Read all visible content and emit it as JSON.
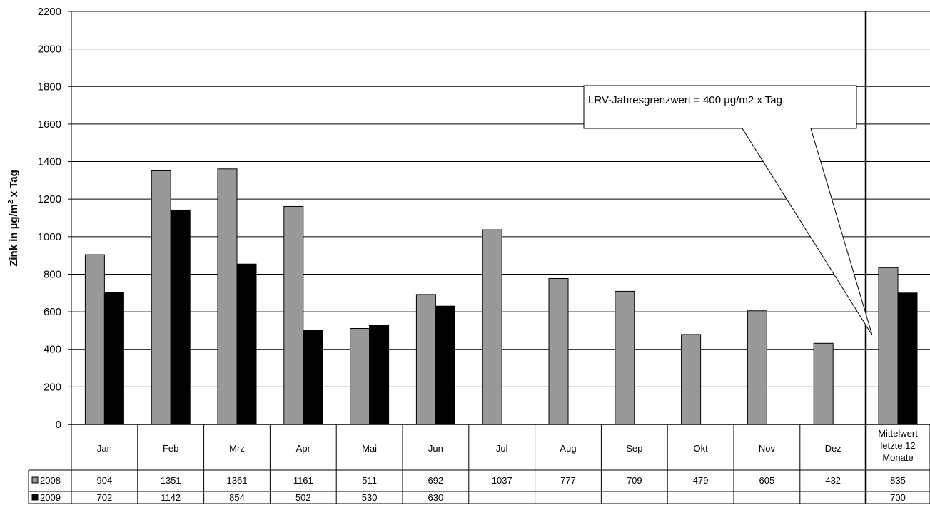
{
  "chart_data": {
    "type": "bar",
    "title": "",
    "xlabel": "",
    "ylabel": "Zink in µg/m² x Tag",
    "ylabel_parts": {
      "main": "Zink in µg/m",
      "sup": "2",
      "tail": " x Tag"
    },
    "ylim": [
      0,
      2200
    ],
    "yticks": [
      0,
      200,
      400,
      600,
      800,
      1000,
      1200,
      1400,
      1600,
      1800,
      2000,
      2200
    ],
    "grid": true,
    "categories": [
      "Jan",
      "Feb",
      "Mrz",
      "Apr",
      "Mai",
      "Jun",
      "Jul",
      "Aug",
      "Sep",
      "Okt",
      "Nov",
      "Dez",
      "Mittelwert letzte 12 Monate"
    ],
    "category_label_lines": [
      [
        "Jan"
      ],
      [
        "Feb"
      ],
      [
        "Mrz"
      ],
      [
        "Apr"
      ],
      [
        "Mai"
      ],
      [
        "Jun"
      ],
      [
        "Jul"
      ],
      [
        "Aug"
      ],
      [
        "Sep"
      ],
      [
        "Okt"
      ],
      [
        "Nov"
      ],
      [
        "Dez"
      ],
      [
        "Mittelwert",
        "letzte 12",
        "Monate"
      ]
    ],
    "series": [
      {
        "name": "2008",
        "color": "#999999",
        "values": [
          904,
          1351,
          1361,
          1161,
          511,
          692,
          1037,
          777,
          709,
          479,
          605,
          432,
          835
        ]
      },
      {
        "name": "2009",
        "color": "#000000",
        "values": [
          702,
          1142,
          854,
          502,
          530,
          630,
          null,
          null,
          null,
          null,
          null,
          null,
          700
        ]
      }
    ],
    "data_table": {
      "rows": [
        {
          "series": "2008",
          "cells": [
            "904",
            "1351",
            "1361",
            "1161",
            "511",
            "692",
            "1037",
            "777",
            "709",
            "479",
            "605",
            "432",
            "835"
          ]
        },
        {
          "series": "2009",
          "cells": [
            "702",
            "1142",
            "854",
            "502",
            "530",
            "630",
            "",
            "",
            "",
            "",
            "",
            "",
            "700"
          ]
        }
      ]
    },
    "annotations": [
      {
        "text": "LRV-Jahresgrenzwert = 400 µg/m2 x Tag",
        "style": "callout"
      }
    ],
    "legend": "data-table-left"
  }
}
